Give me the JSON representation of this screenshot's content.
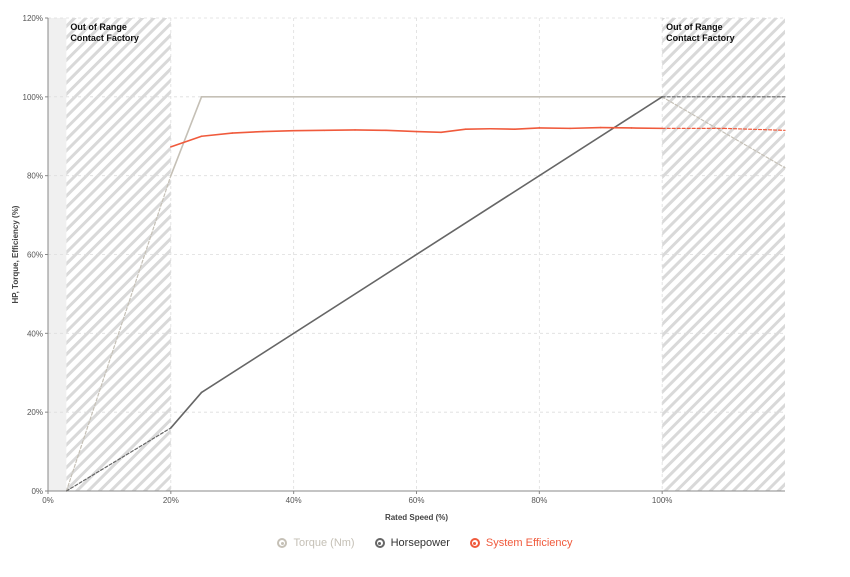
{
  "chart_data": {
    "type": "line",
    "xlabel": "Rated Speed (%)",
    "ylabel": "HP, Torque, Efficiency (%)",
    "xlim": [
      0,
      120
    ],
    "ylim": [
      0,
      120
    ],
    "x_ticks": [
      0,
      20,
      40,
      60,
      80,
      100
    ],
    "y_ticks": [
      0,
      20,
      40,
      60,
      80,
      100,
      120
    ],
    "x_tick_labels": [
      "0%",
      "20%",
      "40%",
      "60%",
      "80%",
      "100%"
    ],
    "y_tick_labels": [
      "0%",
      "20%",
      "40%",
      "60%",
      "80%",
      "100%",
      "120%"
    ],
    "grid": true,
    "legend_position": "bottom-center",
    "out_of_range_zones": [
      {
        "x_range": [
          3,
          20
        ],
        "label_lines": [
          "Out of Range",
          "Contact Factory"
        ]
      },
      {
        "x_range": [
          100,
          120
        ],
        "label_lines": [
          "Out of Range",
          "Contact Factory"
        ]
      }
    ],
    "series": [
      {
        "name": "Torque (Nm)",
        "color": "#c5c0b6",
        "points": [
          [
            3,
            0
          ],
          [
            20,
            80
          ],
          [
            25,
            100
          ],
          [
            100,
            100
          ],
          [
            120,
            82
          ]
        ],
        "dashed_segments": [
          [
            0,
            1
          ],
          [
            3,
            4
          ]
        ]
      },
      {
        "name": "Horsepower",
        "color": "#666666",
        "points": [
          [
            3,
            0
          ],
          [
            20,
            16
          ],
          [
            25,
            25
          ],
          [
            100,
            100
          ],
          [
            120,
            100
          ]
        ],
        "dashed_segments": [
          [
            0,
            1
          ],
          [
            3,
            4
          ]
        ]
      },
      {
        "name": "System Efficiency",
        "color": "#f05a3c",
        "points": [
          [
            20,
            87.3
          ],
          [
            25,
            90.0
          ],
          [
            30,
            90.8
          ],
          [
            35,
            91.2
          ],
          [
            40,
            91.4
          ],
          [
            45,
            91.5
          ],
          [
            50,
            91.6
          ],
          [
            55,
            91.5
          ],
          [
            60,
            91.2
          ],
          [
            64,
            91.0
          ],
          [
            68,
            91.8
          ],
          [
            72,
            91.9
          ],
          [
            76,
            91.8
          ],
          [
            80,
            92.1
          ],
          [
            85,
            92.0
          ],
          [
            90,
            92.2
          ],
          [
            95,
            92.1
          ],
          [
            100,
            92.0
          ],
          [
            110,
            92.0
          ],
          [
            120,
            91.5
          ]
        ],
        "dashed_segments": [
          [
            17,
            18
          ],
          [
            18,
            19
          ]
        ]
      }
    ]
  }
}
